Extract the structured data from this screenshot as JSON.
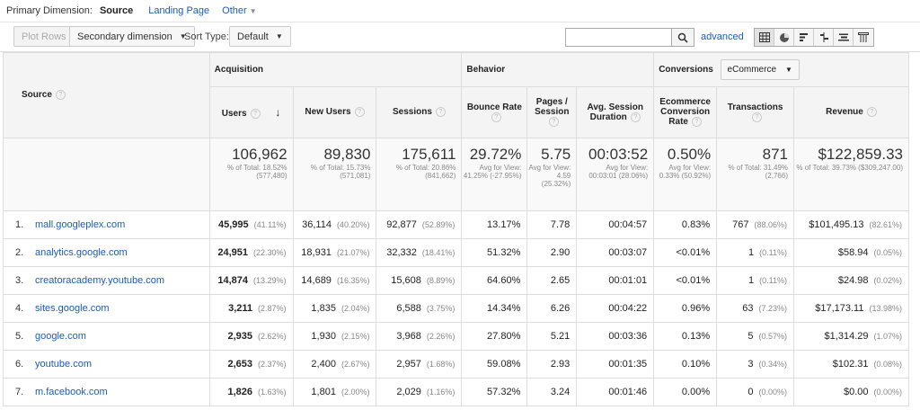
{
  "dimension_bar": {
    "label": "Primary Dimension:",
    "active": "Source",
    "links": [
      "Landing Page",
      "Other"
    ]
  },
  "toolbar": {
    "plot_rows": "Plot Rows",
    "secondary_dimension": "Secondary dimension",
    "sort_type_label": "Sort Type:",
    "sort_type_value": "Default",
    "search_value": "",
    "advanced": "advanced"
  },
  "view_icons": [
    "table-view-icon",
    "pie-view-icon",
    "performance-view-icon",
    "comparison-view-icon",
    "term-cloud-view-icon",
    "pivot-view-icon"
  ],
  "groups": {
    "acquisition": "Acquisition",
    "behavior": "Behavior",
    "conversions": "Conversions",
    "conversions_select": "eCommerce"
  },
  "columns": {
    "source": "Source",
    "users": "Users",
    "new_users": "New Users",
    "sessions": "Sessions",
    "bounce_rate": "Bounce Rate",
    "pages_session": "Pages / Session",
    "avg_duration": "Avg. Session Duration",
    "ecom_rate": "Ecommerce Conversion Rate",
    "transactions": "Transactions",
    "revenue": "Revenue"
  },
  "totals": {
    "users": {
      "big": "106,962",
      "sub": "% of Total: 18.52% (577,480)"
    },
    "new_users": {
      "big": "89,830",
      "sub": "% of Total: 15.73% (571,081)"
    },
    "sessions": {
      "big": "175,611",
      "sub": "% of Total: 20.86% (841,662)"
    },
    "bounce_rate": {
      "big": "29.72%",
      "sub": "Avg for View: 41.25% (-27.95%)"
    },
    "pages_session": {
      "big": "5.75",
      "sub": "Avg for View: 4.59 (25.32%)"
    },
    "avg_duration": {
      "big": "00:03:52",
      "sub": "Avg for View: 00:03:01 (28.06%)"
    },
    "ecom_rate": {
      "big": "0.50%",
      "sub": "Avg for View: 0.33% (50.92%)"
    },
    "transactions": {
      "big": "871",
      "sub": "% of Total: 31.49% (2,766)"
    },
    "revenue": {
      "big": "$122,859.33",
      "sub": "% of Total: 39.73% ($309,247.00)"
    }
  },
  "rows": [
    {
      "idx": "1.",
      "source": "mall.googleplex.com",
      "users": "45,995",
      "users_pct": "(41.11%)",
      "new_users": "36,114",
      "new_users_pct": "(40.20%)",
      "sessions": "92,877",
      "sessions_pct": "(52.89%)",
      "bounce": "13.17%",
      "pages": "7.78",
      "duration": "00:04:57",
      "ecom": "0.83%",
      "trans": "767",
      "trans_pct": "(88.06%)",
      "revenue": "$101,495.13",
      "revenue_pct": "(82.61%)"
    },
    {
      "idx": "2.",
      "source": "analytics.google.com",
      "users": "24,951",
      "users_pct": "(22.30%)",
      "new_users": "18,931",
      "new_users_pct": "(21.07%)",
      "sessions": "32,332",
      "sessions_pct": "(18.41%)",
      "bounce": "51.32%",
      "pages": "2.90",
      "duration": "00:03:07",
      "ecom": "<0.01%",
      "trans": "1",
      "trans_pct": "(0.11%)",
      "revenue": "$58.94",
      "revenue_pct": "(0.05%)"
    },
    {
      "idx": "3.",
      "source": "creatoracademy.youtube.com",
      "users": "14,874",
      "users_pct": "(13.29%)",
      "new_users": "14,689",
      "new_users_pct": "(16.35%)",
      "sessions": "15,608",
      "sessions_pct": "(8.89%)",
      "bounce": "64.60%",
      "pages": "2.65",
      "duration": "00:01:01",
      "ecom": "<0.01%",
      "trans": "1",
      "trans_pct": "(0.11%)",
      "revenue": "$24.98",
      "revenue_pct": "(0.02%)"
    },
    {
      "idx": "4.",
      "source": "sites.google.com",
      "users": "3,211",
      "users_pct": "(2.87%)",
      "new_users": "1,835",
      "new_users_pct": "(2.04%)",
      "sessions": "6,588",
      "sessions_pct": "(3.75%)",
      "bounce": "14.34%",
      "pages": "6.26",
      "duration": "00:04:22",
      "ecom": "0.96%",
      "trans": "63",
      "trans_pct": "(7.23%)",
      "revenue": "$17,173.11",
      "revenue_pct": "(13.98%)"
    },
    {
      "idx": "5.",
      "source": "google.com",
      "users": "2,935",
      "users_pct": "(2.62%)",
      "new_users": "1,930",
      "new_users_pct": "(2.15%)",
      "sessions": "3,968",
      "sessions_pct": "(2.26%)",
      "bounce": "27.80%",
      "pages": "5.21",
      "duration": "00:03:36",
      "ecom": "0.13%",
      "trans": "5",
      "trans_pct": "(0.57%)",
      "revenue": "$1,314.29",
      "revenue_pct": "(1.07%)"
    },
    {
      "idx": "6.",
      "source": "youtube.com",
      "users": "2,653",
      "users_pct": "(2.37%)",
      "new_users": "2,400",
      "new_users_pct": "(2.67%)",
      "sessions": "2,957",
      "sessions_pct": "(1.68%)",
      "bounce": "59.08%",
      "pages": "2.93",
      "duration": "00:01:35",
      "ecom": "0.10%",
      "trans": "3",
      "trans_pct": "(0.34%)",
      "revenue": "$102.31",
      "revenue_pct": "(0.08%)"
    },
    {
      "idx": "7.",
      "source": "m.facebook.com",
      "users": "1,826",
      "users_pct": "(1.63%)",
      "new_users": "1,801",
      "new_users_pct": "(2.00%)",
      "sessions": "2,029",
      "sessions_pct": "(1.16%)",
      "bounce": "57.32%",
      "pages": "3.24",
      "duration": "00:01:46",
      "ecom": "0.00%",
      "trans": "0",
      "trans_pct": "(0.00%)",
      "revenue": "$0.00",
      "revenue_pct": "(0.00%)"
    }
  ]
}
